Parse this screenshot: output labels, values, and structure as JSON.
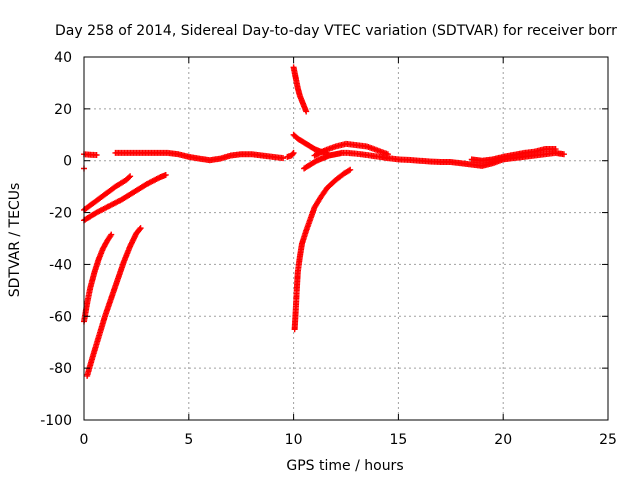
{
  "chart_data": {
    "type": "scatter",
    "title": "Day 258 of 2014, Sidereal Day-to-day VTEC variation (SDTVAR) for receiver borr",
    "xlabel": "GPS time / hours",
    "ylabel": "SDTVAR / TECUs",
    "xlim": [
      0,
      25
    ],
    "ylim": [
      -100,
      40
    ],
    "xticks": [
      0,
      5,
      10,
      15,
      20,
      25
    ],
    "yticks": [
      -100,
      -80,
      -60,
      -40,
      -20,
      0,
      20,
      40
    ],
    "grid": true,
    "marker": "+",
    "series_color": "#ff0000",
    "segments": [
      {
        "x": [
          0.0,
          0.3,
          0.6
        ],
        "y": [
          2.5,
          2.3,
          2.2
        ]
      },
      {
        "x": [
          1.5,
          2.0,
          2.5,
          3.0,
          3.5,
          4.0,
          4.5,
          5.0,
          5.5,
          6.0,
          6.5,
          7.0,
          7.5,
          8.0,
          8.5,
          9.0,
          9.5
        ],
        "y": [
          3.0,
          3.0,
          3.0,
          3.0,
          3.0,
          3.0,
          2.5,
          1.5,
          0.8,
          0.2,
          0.8,
          2.0,
          2.5,
          2.5,
          2.0,
          1.5,
          1.0
        ]
      },
      {
        "x": [
          9.7,
          9.9,
          10.0
        ],
        "y": [
          1.5,
          2.0,
          3.0
        ]
      },
      {
        "x": [
          0.0,
          0.5,
          1.0,
          1.5,
          2.0,
          2.2
        ],
        "y": [
          -19,
          -16,
          -13,
          -10,
          -7.5,
          -6
        ]
      },
      {
        "x": [
          0.0,
          0.6,
          1.2,
          1.8,
          2.4,
          3.0,
          3.6,
          3.9
        ],
        "y": [
          -23,
          -20,
          -17.5,
          -15,
          -12,
          -9,
          -6.5,
          -5.5
        ]
      },
      {
        "x": [
          0.0,
          0.15,
          0.3,
          0.5,
          0.7,
          0.9,
          1.1,
          1.3
        ],
        "y": [
          -62,
          -55,
          -49,
          -43,
          -38,
          -34,
          -31,
          -28.5
        ]
      },
      {
        "x": [
          0.15,
          0.4,
          0.7,
          1.0,
          1.3,
          1.6,
          1.9,
          2.2,
          2.5,
          2.7
        ],
        "y": [
          -83,
          -76,
          -68,
          -60,
          -53,
          -46,
          -39,
          -33,
          -28,
          -26
        ]
      },
      {
        "x": [
          10.0,
          10.1,
          10.2,
          10.3,
          10.45,
          10.6
        ],
        "y": [
          36,
          32,
          28,
          25,
          22,
          19
        ]
      },
      {
        "x": [
          10.0,
          10.2,
          10.4,
          10.6,
          10.8,
          11.0,
          11.3,
          11.6
        ],
        "y": [
          10,
          8.5,
          7.5,
          6.5,
          5.5,
          4.5,
          3.5,
          3.0
        ]
      },
      {
        "x": [
          10.05,
          10.1,
          10.15,
          10.2,
          10.3,
          10.4,
          10.6,
          10.8,
          11.0,
          11.3,
          11.6,
          12.0,
          12.4,
          12.7
        ],
        "y": [
          -65,
          -58,
          -50,
          -43,
          -37,
          -32,
          -27,
          -22.5,
          -18,
          -14,
          -10.5,
          -7.5,
          -5,
          -3.5
        ]
      },
      {
        "x": [
          10.5,
          10.8,
          11.1,
          11.4,
          11.7,
          12.0,
          12.3,
          12.6,
          12.9,
          13.2,
          13.5,
          13.8,
          14.1,
          14.5
        ],
        "y": [
          -3,
          -1.5,
          0,
          1.0,
          2.0,
          2.5,
          3.0,
          3.0,
          2.8,
          2.5,
          2.2,
          1.8,
          1.5,
          1.0
        ]
      },
      {
        "x": [
          11.0,
          11.5,
          12.0,
          12.5,
          13.0,
          13.5,
          14.0,
          14.5
        ],
        "y": [
          2.0,
          4.0,
          5.5,
          6.5,
          6.0,
          5.5,
          4.0,
          2.5
        ]
      },
      {
        "x": [
          14.5,
          15.0,
          15.5,
          16.0,
          16.5,
          17.0,
          17.5,
          18.0,
          18.5,
          19.0,
          19.5,
          20.0,
          20.5,
          21.0,
          21.5,
          22.0,
          22.5,
          22.9
        ],
        "y": [
          1.0,
          0.5,
          0.3,
          0.0,
          -0.3,
          -0.5,
          -0.5,
          -1.0,
          -1.5,
          -2.0,
          -1.0,
          0.5,
          1.0,
          1.5,
          2.0,
          2.5,
          3.0,
          2.5
        ]
      },
      {
        "x": [
          18.5,
          19.0,
          19.5,
          20.0,
          21.0,
          21.5,
          22.0,
          22.5
        ],
        "y": [
          0.5,
          0.0,
          0.5,
          1.5,
          3.0,
          3.5,
          4.5,
          4.5
        ]
      },
      {
        "x": [
          0.0
        ],
        "y": [
          -3
        ]
      }
    ]
  }
}
